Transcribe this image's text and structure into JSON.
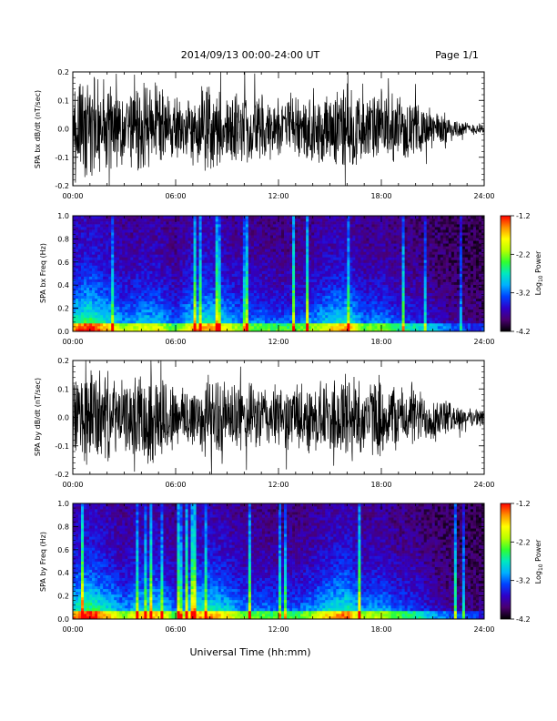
{
  "header": {
    "title": "2014/09/13  00:00-24:00 UT",
    "page_label": "Page 1/1"
  },
  "x_axis": {
    "label": "Universal Time (hh:mm)",
    "ticks": [
      "00:00",
      "06:00",
      "12:00",
      "18:00",
      "24:00"
    ]
  },
  "colorbar": {
    "label": "Log10 Power",
    "ticks": [
      "-1.2",
      "-2.2",
      "-3.2",
      "-4.2"
    ],
    "range": [
      -4.2,
      -1.2
    ],
    "colormap": [
      "#000000",
      "#4a0070",
      "#2f00c8",
      "#0040ff",
      "#00b0ff",
      "#00e8c0",
      "#30ff30",
      "#b8ff00",
      "#ffff00",
      "#ff9000",
      "#ff0000"
    ]
  },
  "chart_data": [
    {
      "type": "line",
      "title": "",
      "ylabel": "SPA bx dB/dt (nT/sec)",
      "xlabel": "",
      "x_range": [
        "00:00",
        "24:00"
      ],
      "ylim": [
        -0.2,
        0.2
      ],
      "y_ticks": [
        "0.2",
        "0.1",
        "0.0",
        "-0.1",
        "-0.2"
      ],
      "color": "#000000",
      "envelope": {
        "x_hours": [
          0,
          1,
          2,
          3,
          4,
          5,
          6,
          7,
          8,
          9,
          10,
          11,
          12,
          13,
          14,
          15,
          16,
          17,
          18,
          19,
          20,
          21,
          22,
          23,
          24
        ],
        "amplitude": [
          0.2,
          0.2,
          0.18,
          0.14,
          0.18,
          0.16,
          0.12,
          0.14,
          0.16,
          0.14,
          0.12,
          0.13,
          0.11,
          0.13,
          0.15,
          0.14,
          0.2,
          0.12,
          0.15,
          0.11,
          0.1,
          0.08,
          0.05,
          0.025,
          0.02
        ]
      }
    },
    {
      "type": "heatmap",
      "title": "",
      "ylabel": "SPA bx Freq (Hz)",
      "xlabel": "",
      "x_range": [
        "00:00",
        "24:00"
      ],
      "ylim": [
        0.0,
        1.0
      ],
      "y_ticks": [
        "1.0",
        "0.8",
        "0.6",
        "0.4",
        "0.2",
        "0.0"
      ],
      "z_range": [
        -4.2,
        -1.2
      ],
      "activity_hours": [
        0,
        1,
        2,
        3,
        4,
        5,
        6,
        7,
        8,
        9,
        10,
        11,
        12,
        13,
        14,
        15,
        16,
        17,
        18,
        19,
        20,
        21,
        22,
        23,
        24
      ],
      "activity_level": [
        0.85,
        1.0,
        0.8,
        0.6,
        0.7,
        0.7,
        0.5,
        0.8,
        0.85,
        0.7,
        0.55,
        0.55,
        0.5,
        0.5,
        0.6,
        0.75,
        0.85,
        0.55,
        0.6,
        0.45,
        0.4,
        0.3,
        0.2,
        0.15,
        0.12
      ]
    },
    {
      "type": "line",
      "title": "",
      "ylabel": "SPA by dB/dt (nT/sec)",
      "xlabel": "",
      "x_range": [
        "00:00",
        "24:00"
      ],
      "ylim": [
        -0.2,
        0.2
      ],
      "y_ticks": [
        "0.2",
        "0.1",
        "0.0",
        "-0.1",
        "-0.2"
      ],
      "color": "#000000",
      "envelope": {
        "x_hours": [
          0,
          1,
          2,
          3,
          4,
          5,
          6,
          7,
          8,
          9,
          10,
          11,
          12,
          13,
          14,
          15,
          16,
          17,
          18,
          19,
          20,
          21,
          22,
          23,
          24
        ],
        "amplitude": [
          0.15,
          0.2,
          0.17,
          0.13,
          0.17,
          0.2,
          0.12,
          0.14,
          0.15,
          0.14,
          0.13,
          0.13,
          0.12,
          0.13,
          0.14,
          0.14,
          0.2,
          0.14,
          0.15,
          0.12,
          0.11,
          0.09,
          0.06,
          0.035,
          0.03
        ]
      }
    },
    {
      "type": "heatmap",
      "title": "",
      "ylabel": "SPA by Freq (Hz)",
      "xlabel": "Universal Time (hh:mm)",
      "x_range": [
        "00:00",
        "24:00"
      ],
      "ylim": [
        0.0,
        1.0
      ],
      "y_ticks": [
        "1.0",
        "0.8",
        "0.6",
        "0.4",
        "0.2",
        "0.0"
      ],
      "z_range": [
        -4.2,
        -1.2
      ],
      "activity_hours": [
        0,
        1,
        2,
        3,
        4,
        5,
        6,
        7,
        8,
        9,
        10,
        11,
        12,
        13,
        14,
        15,
        16,
        17,
        18,
        19,
        20,
        21,
        22,
        23,
        24
      ],
      "activity_level": [
        0.85,
        1.0,
        0.8,
        0.6,
        0.75,
        0.8,
        0.5,
        0.8,
        0.85,
        0.75,
        0.55,
        0.55,
        0.5,
        0.5,
        0.6,
        0.8,
        0.9,
        0.6,
        0.65,
        0.5,
        0.45,
        0.3,
        0.2,
        0.15,
        0.12
      ]
    }
  ]
}
